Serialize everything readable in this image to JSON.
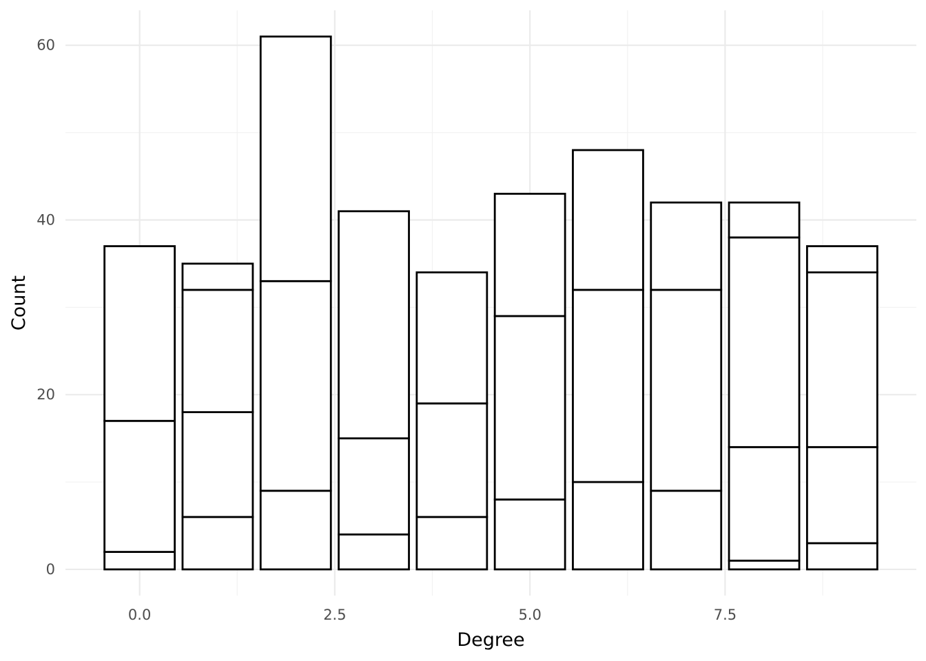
{
  "chart_data": {
    "type": "bar",
    "stacked": true,
    "xlabel": "Degree",
    "ylabel": "Count",
    "xlim": [
      -0.95,
      9.95
    ],
    "ylim": [
      -3,
      64
    ],
    "x_ticks": [
      {
        "value": 0.0,
        "label": "0.0"
      },
      {
        "value": 2.5,
        "label": "2.5"
      },
      {
        "value": 5.0,
        "label": "5.0"
      },
      {
        "value": 7.5,
        "label": "7.5"
      }
    ],
    "y_ticks": [
      {
        "value": 0,
        "label": "0"
      },
      {
        "value": 20,
        "label": "20"
      },
      {
        "value": 40,
        "label": "40"
      },
      {
        "value": 60,
        "label": "60"
      }
    ],
    "x_minor_ticks": [
      1.25,
      3.75,
      6.25,
      8.75
    ],
    "y_minor_ticks": [
      10,
      30,
      50
    ],
    "grid": true,
    "bar_width": 0.9,
    "bars": [
      {
        "x": 0,
        "boundaries": [
          2,
          17,
          37
        ]
      },
      {
        "x": 1,
        "boundaries": [
          6,
          18,
          32,
          35
        ]
      },
      {
        "x": 2,
        "boundaries": [
          9,
          33,
          61
        ]
      },
      {
        "x": 3,
        "boundaries": [
          4,
          15,
          41
        ]
      },
      {
        "x": 4,
        "boundaries": [
          6,
          19,
          34
        ]
      },
      {
        "x": 5,
        "boundaries": [
          8,
          29,
          43
        ]
      },
      {
        "x": 6,
        "boundaries": [
          10,
          32,
          48
        ]
      },
      {
        "x": 7,
        "boundaries": [
          9,
          32,
          42
        ]
      },
      {
        "x": 8,
        "boundaries": [
          1,
          14,
          38,
          42
        ]
      },
      {
        "x": 9,
        "boundaries": [
          3,
          14,
          34,
          37
        ]
      }
    ],
    "colors": {
      "fill": "#ffffff",
      "outline": "#000000",
      "grid": "#ebebeb"
    }
  }
}
